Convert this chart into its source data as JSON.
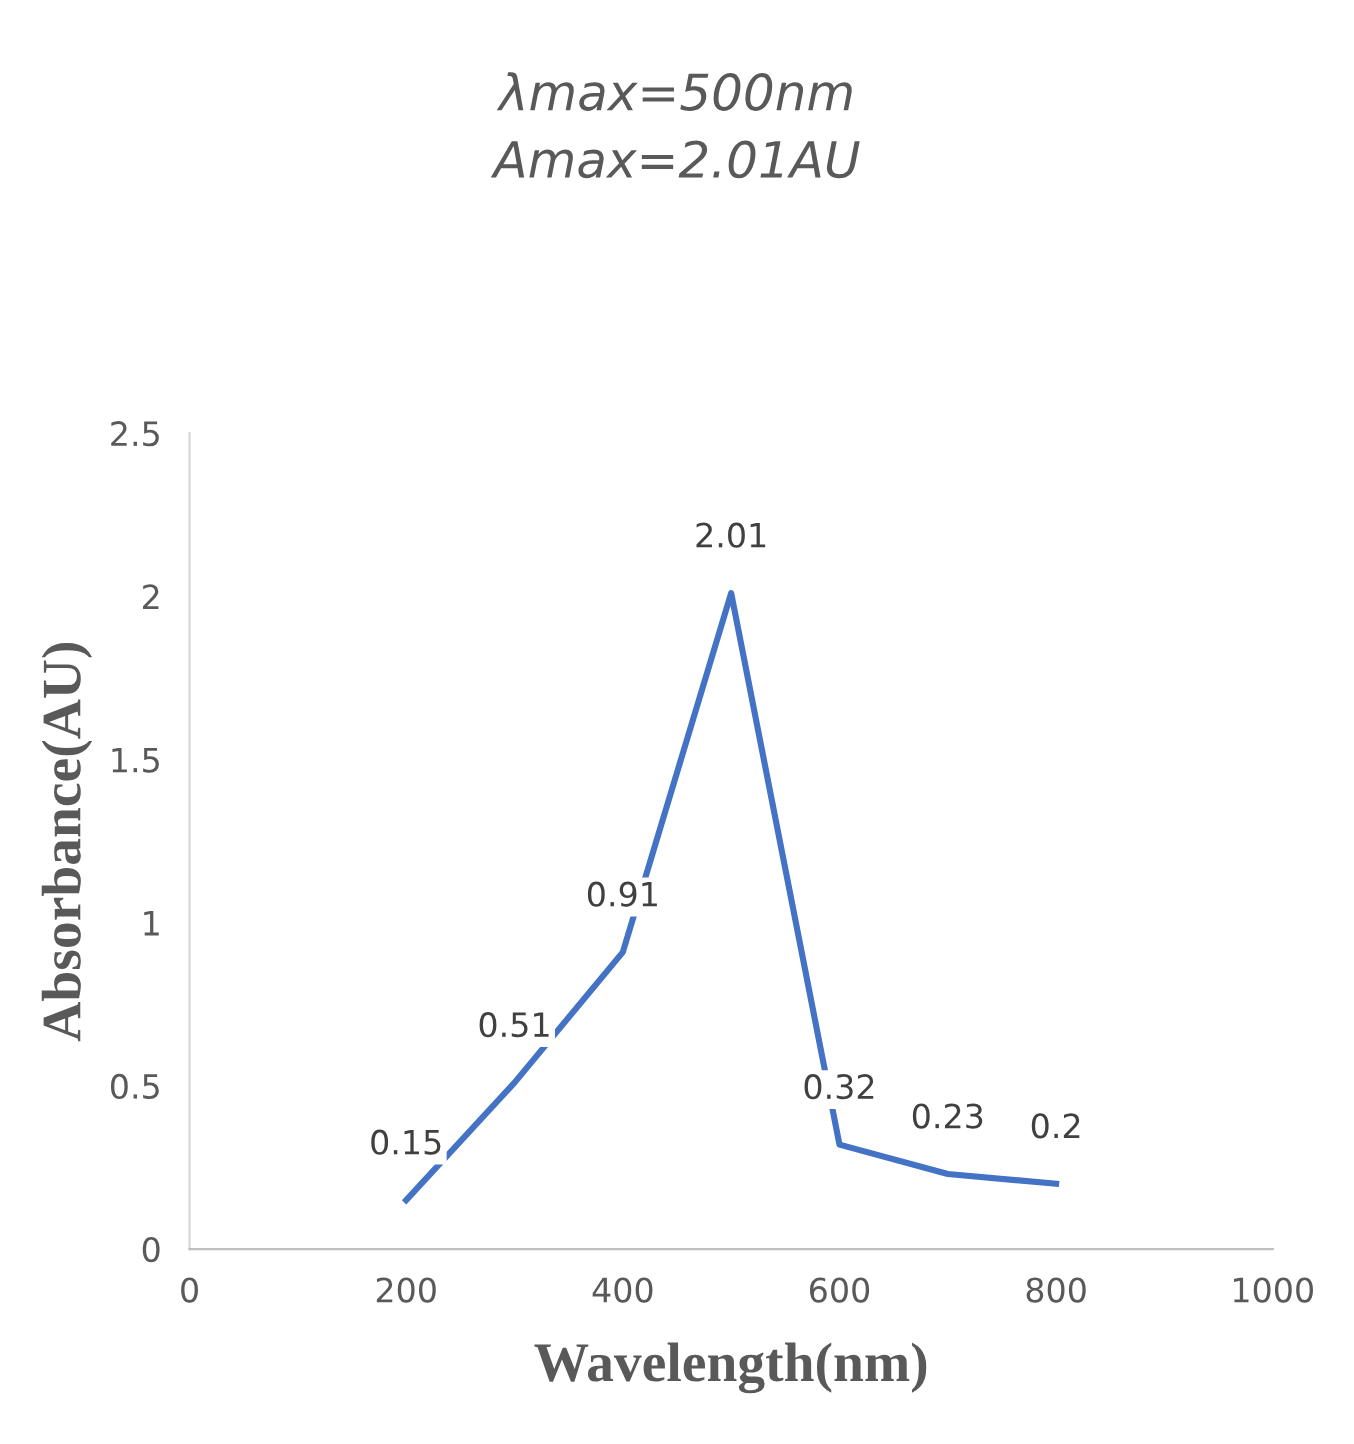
{
  "chart_data": {
    "type": "line",
    "title": "λmax=500nm\nAmax=2.01AU",
    "xlabel": "Wavelength(nm)",
    "ylabel": "Absorbance(AU)",
    "x": [
      200,
      300,
      400,
      500,
      600,
      700,
      800
    ],
    "series": [
      {
        "color": "#4472c4",
        "values": [
          0.15,
          0.51,
          0.91,
          2.01,
          0.32,
          0.23,
          0.2
        ]
      }
    ],
    "xlim": [
      0,
      1000
    ],
    "xticks": [
      0,
      200,
      400,
      600,
      800,
      1000
    ],
    "ylim": [
      0,
      2.5
    ],
    "yticks": [
      0,
      0.5,
      1,
      1.5,
      2,
      2.5
    ],
    "data_labels": true,
    "grid": false,
    "legend": false,
    "marker": "none",
    "line_style": "solid"
  }
}
